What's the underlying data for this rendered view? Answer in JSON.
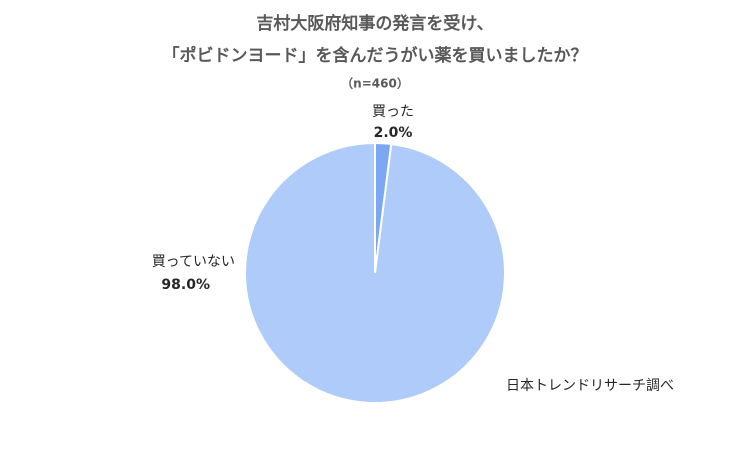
{
  "chart_data": {
    "type": "pie",
    "title": [
      "吉村大阪府知事の発言を受け、",
      "「ポビドンヨード」を含んだうがい薬を買いましたか？"
    ],
    "subtitle": "（n=460）",
    "categories": [
      "買った",
      "買っていない"
    ],
    "values": [
      2.0,
      98.0
    ],
    "value_labels": [
      "2.0%",
      "98.0%"
    ],
    "colors": [
      "#7ba7f5",
      "#aecbfa"
    ],
    "source": "日本トレンドリサーチ調べ"
  }
}
